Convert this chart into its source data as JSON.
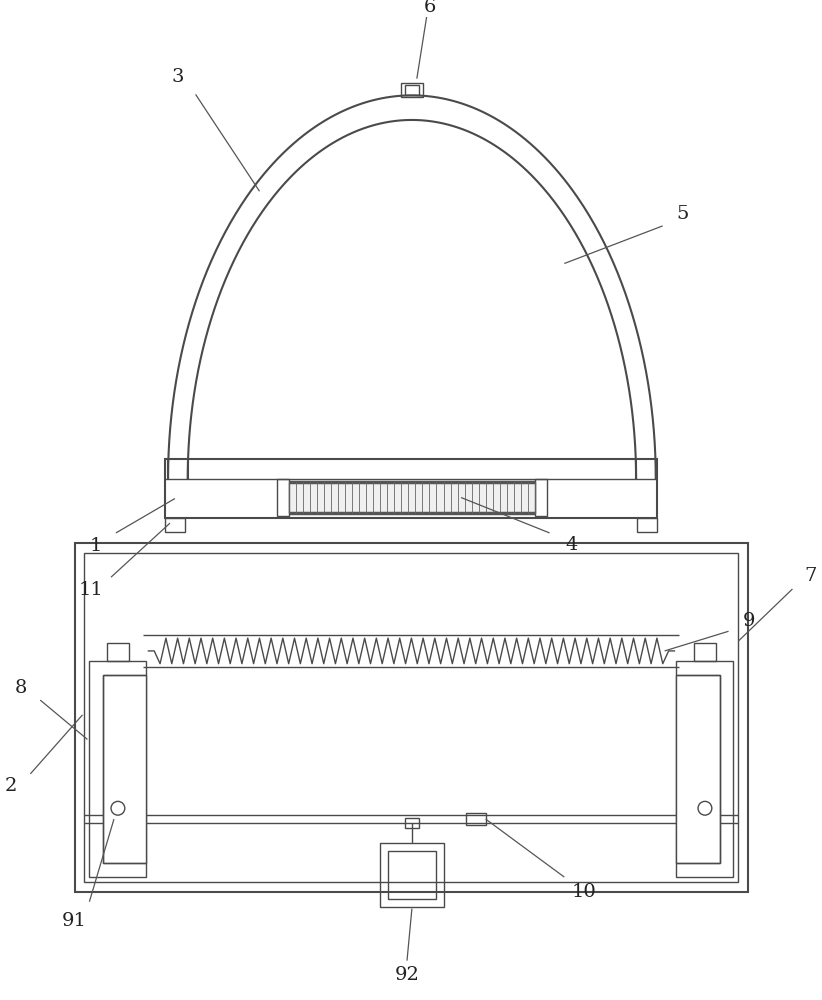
{
  "bg_color": "#ffffff",
  "line_color": "#4a4a4a",
  "lw_main": 1.5,
  "lw_thin": 1.0,
  "fig_width": 8.22,
  "fig_height": 10.0
}
